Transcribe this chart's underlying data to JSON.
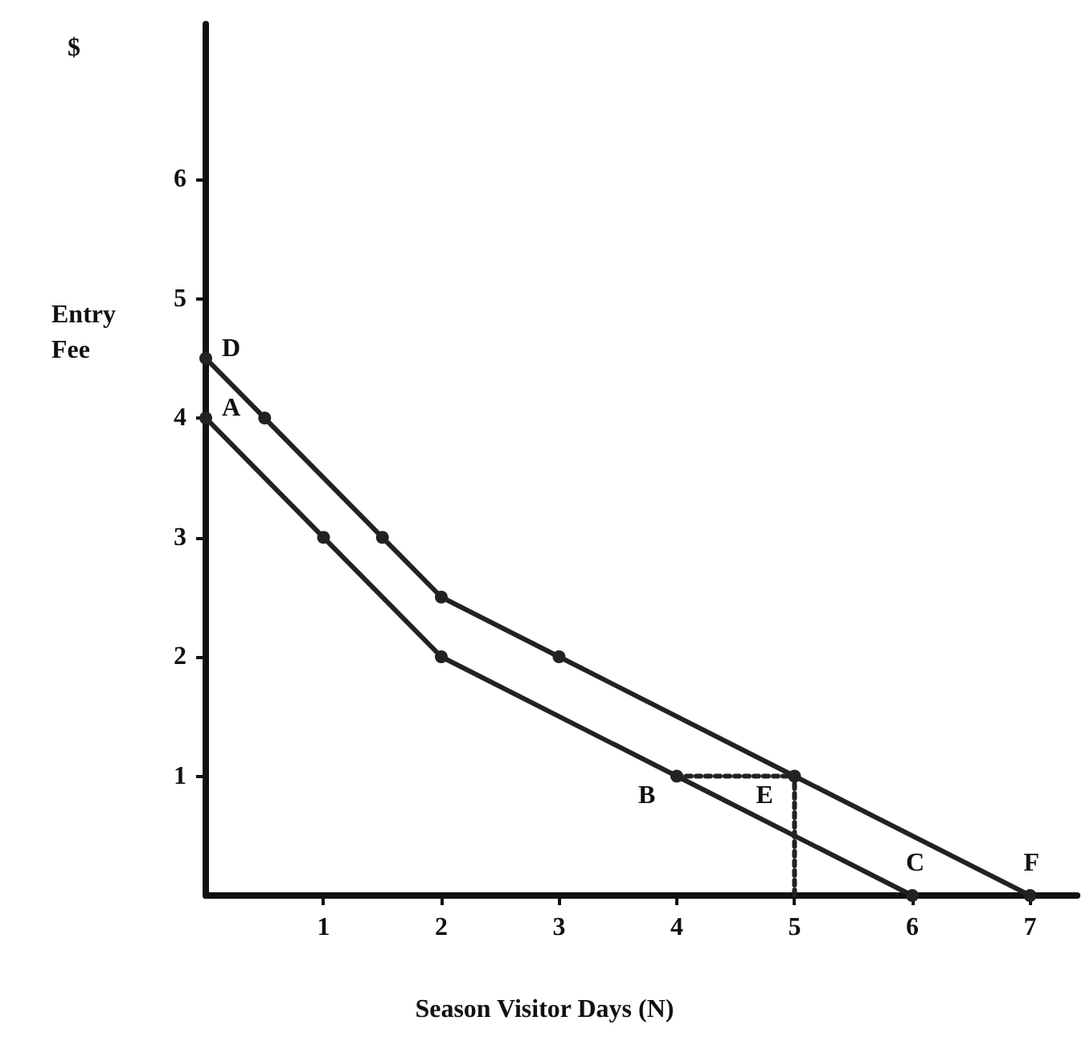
{
  "chart_data": {
    "type": "line",
    "xlabel": "Season Visitor Days (N)",
    "ylabel": "Entry Fee",
    "annotations": [
      "$",
      {
        "text": "A",
        "x": 0,
        "y": 4
      },
      {
        "text": "B",
        "x": 4,
        "y": 1
      },
      {
        "text": "C",
        "x": 6,
        "y": 0
      },
      {
        "text": "D",
        "x": 0,
        "y": 4.5
      },
      {
        "text": "E",
        "x": 5,
        "y": 1
      },
      {
        "text": "F",
        "x": 7,
        "y": 0
      }
    ],
    "series": [
      {
        "color": "#222222",
        "x": [
          0,
          1,
          2,
          4,
          6
        ],
        "values": [
          4,
          3,
          2,
          1,
          0
        ]
      },
      {
        "color": "#222222",
        "x": [
          0,
          0.5,
          1.5,
          2,
          3,
          5,
          7
        ],
        "values": [
          4.5,
          4,
          3,
          2.5,
          2,
          1,
          0
        ]
      },
      {
        "color": "#222222",
        "x": [
          4,
          5,
          5
        ],
        "values": [
          1,
          1,
          0
        ],
        "line_style": "dotted",
        "marker": "none"
      }
    ],
    "marker": "circle",
    "line_style": "solid",
    "xlim": [
      0,
      7.4
    ],
    "xticks": [
      1,
      2,
      3,
      4,
      5,
      6,
      7
    ],
    "ylim": [
      0,
      7.3
    ],
    "yticks": [
      1,
      2,
      3,
      4,
      5,
      6
    ]
  }
}
